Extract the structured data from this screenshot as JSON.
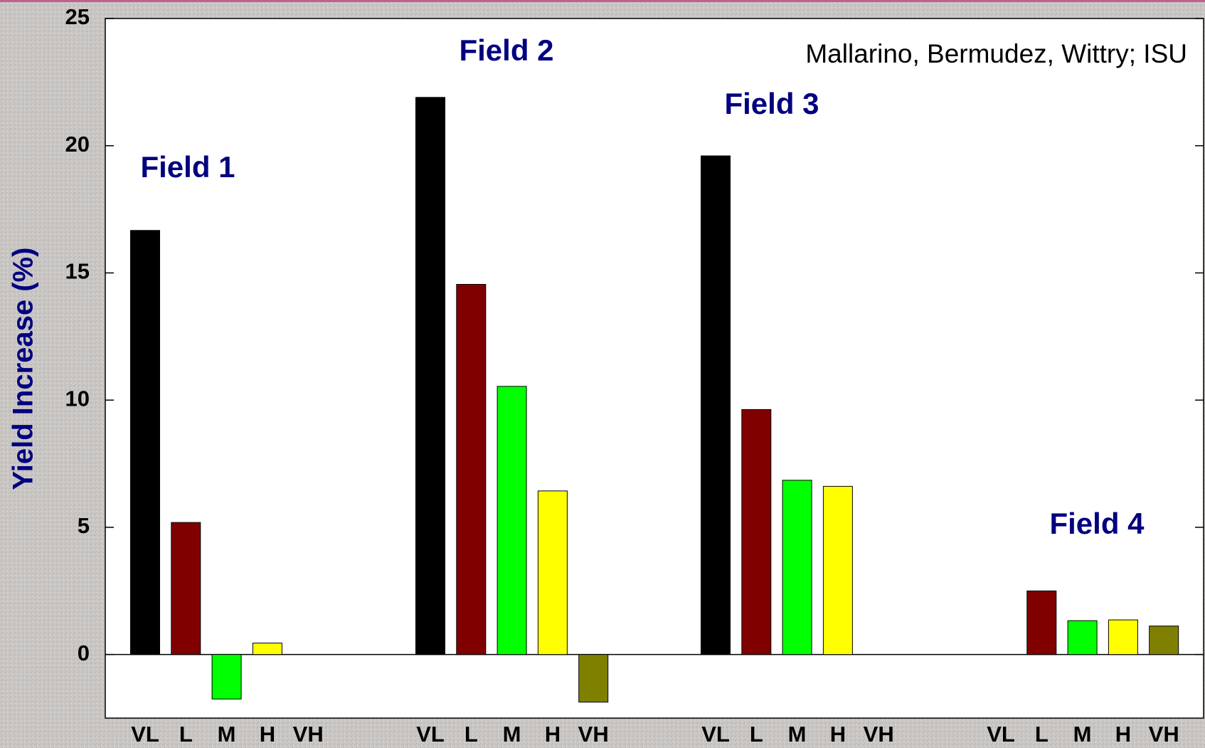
{
  "chart_data": {
    "type": "bar",
    "y_label": "Yield Increase (%)",
    "source": "Mallarino, Bermudez, Wittry; ISU",
    "categories": [
      "VL",
      "L",
      "M",
      "H",
      "VH"
    ],
    "colors": [
      "#000000",
      "#800000",
      "#00ff00",
      "#ffff00",
      "#808000"
    ],
    "series": [
      {
        "name": "Field 1",
        "values": [
          16.67,
          5.19,
          -1.75,
          0.45,
          null
        ]
      },
      {
        "name": "Field 2",
        "values": [
          21.9,
          14.55,
          10.54,
          6.43,
          -1.87
        ]
      },
      {
        "name": "Field 3",
        "values": [
          19.6,
          9.63,
          6.85,
          6.61,
          null
        ]
      },
      {
        "name": "Field 4",
        "values": [
          null,
          2.5,
          1.33,
          1.36,
          1.12
        ]
      }
    ],
    "ylim": [
      -2.5,
      25
    ],
    "yticks": [
      0,
      5,
      10,
      15,
      20,
      25
    ]
  }
}
